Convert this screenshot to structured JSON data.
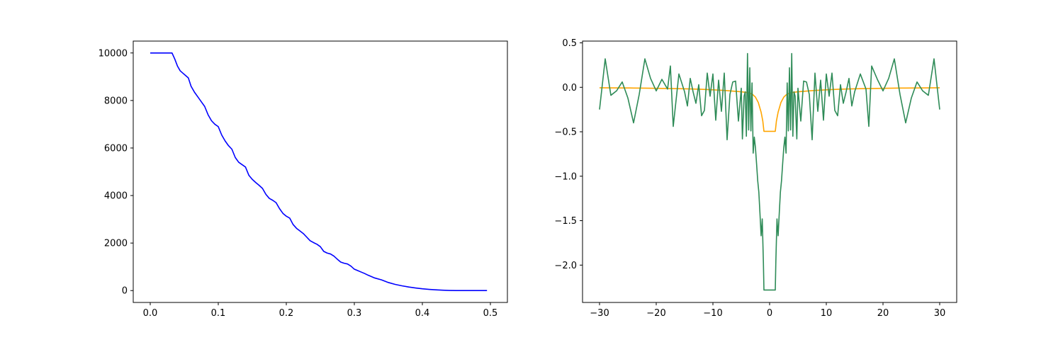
{
  "chart_data": [
    {
      "type": "line",
      "title": "",
      "xlabel": "",
      "ylabel": "",
      "xlim": [
        -0.025,
        0.525
      ],
      "ylim": [
        -500,
        10500
      ],
      "xticks": [
        0.0,
        0.1,
        0.2,
        0.3,
        0.4,
        0.5
      ],
      "xtick_labels": [
        "0.0",
        "0.1",
        "0.2",
        "0.3",
        "0.4",
        "0.5"
      ],
      "yticks": [
        0,
        2000,
        4000,
        6000,
        8000,
        10000
      ],
      "ytick_labels": [
        "0",
        "2000",
        "4000",
        "6000",
        "8000",
        "10000"
      ],
      "grid": false,
      "series": [
        {
          "color": "#0000ff",
          "x": [
            0.0,
            0.032,
            0.036,
            0.04,
            0.044,
            0.048,
            0.052,
            0.056,
            0.06,
            0.065,
            0.07,
            0.075,
            0.08,
            0.085,
            0.09,
            0.095,
            0.1,
            0.105,
            0.11,
            0.115,
            0.12,
            0.125,
            0.13,
            0.135,
            0.14,
            0.145,
            0.15,
            0.155,
            0.16,
            0.165,
            0.17,
            0.175,
            0.18,
            0.185,
            0.19,
            0.195,
            0.2,
            0.205,
            0.21,
            0.215,
            0.22,
            0.225,
            0.23,
            0.235,
            0.24,
            0.245,
            0.25,
            0.255,
            0.26,
            0.265,
            0.27,
            0.275,
            0.28,
            0.285,
            0.29,
            0.295,
            0.3,
            0.305,
            0.31,
            0.315,
            0.32,
            0.33,
            0.34,
            0.35,
            0.36,
            0.37,
            0.38,
            0.39,
            0.4,
            0.41,
            0.42,
            0.43,
            0.44,
            0.45,
            0.46,
            0.47,
            0.48,
            0.49,
            0.495
          ],
          "y": [
            10000,
            10000,
            9750,
            9450,
            9250,
            9150,
            9050,
            8950,
            8600,
            8350,
            8150,
            7950,
            7750,
            7400,
            7150,
            7000,
            6900,
            6550,
            6300,
            6100,
            5950,
            5600,
            5400,
            5300,
            5200,
            4850,
            4680,
            4550,
            4430,
            4300,
            4050,
            3880,
            3800,
            3700,
            3450,
            3250,
            3130,
            3050,
            2780,
            2620,
            2510,
            2400,
            2250,
            2100,
            2020,
            1950,
            1850,
            1650,
            1580,
            1540,
            1450,
            1320,
            1200,
            1150,
            1120,
            1030,
            900,
            840,
            780,
            720,
            650,
            530,
            450,
            340,
            260,
            200,
            150,
            110,
            75,
            50,
            30,
            15,
            5,
            2,
            1,
            0,
            0,
            0,
            0
          ]
        }
      ]
    },
    {
      "type": "line",
      "title": "",
      "xlabel": "",
      "ylabel": "",
      "xlim": [
        -33,
        33
      ],
      "ylim": [
        -2.42,
        0.52
      ],
      "xticks": [
        -30,
        -20,
        -10,
        0,
        10,
        20,
        30
      ],
      "xtick_labels": [
        "−30",
        "−20",
        "−10",
        "0",
        "10",
        "20",
        "30"
      ],
      "yticks": [
        0.5,
        0.0,
        -0.5,
        -1.0,
        -1.5,
        -2.0
      ],
      "ytick_labels": [
        "0.5",
        "0.0",
        "−0.5",
        "−1.0",
        "−1.5",
        "−2.0"
      ],
      "grid": false,
      "series": [
        {
          "color": "#ffa500",
          "x": [
            -30,
            -28,
            -26,
            -24,
            -22,
            -20,
            -18,
            -16,
            -14,
            -12,
            -10,
            -8,
            -6,
            -5,
            -4,
            -3.5,
            -3,
            -2.5,
            -2,
            -1.5,
            -1.2,
            -1,
            0,
            1,
            1.2,
            1.5,
            2,
            2.5,
            3,
            3.5,
            4,
            5,
            6,
            8,
            10,
            12,
            14,
            16,
            18,
            20,
            22,
            24,
            26,
            28,
            30
          ],
          "y": [
            -0.005,
            -0.006,
            -0.007,
            -0.008,
            -0.009,
            -0.011,
            -0.013,
            -0.015,
            -0.018,
            -0.022,
            -0.028,
            -0.035,
            -0.045,
            -0.05,
            -0.058,
            -0.065,
            -0.08,
            -0.11,
            -0.17,
            -0.28,
            -0.38,
            -0.495,
            -0.495,
            -0.495,
            -0.38,
            -0.28,
            -0.17,
            -0.11,
            -0.08,
            -0.065,
            -0.058,
            -0.05,
            -0.045,
            -0.035,
            -0.028,
            -0.022,
            -0.018,
            -0.015,
            -0.013,
            -0.011,
            -0.009,
            -0.008,
            -0.007,
            -0.006,
            -0.005
          ]
        },
        {
          "color": "#2e8b57",
          "x": [
            -30,
            -29,
            -28,
            -27,
            -26,
            -25,
            -24,
            -23,
            -22,
            -21,
            -20,
            -19,
            -18,
            -17.5,
            -17,
            -16,
            -15,
            -14.5,
            -14,
            -13.5,
            -13,
            -12.5,
            -12,
            -11.5,
            -11,
            -10.5,
            -10,
            -9.5,
            -9,
            -8.5,
            -8,
            -7.5,
            -7,
            -6.5,
            -6,
            -5.5,
            -5,
            -4.8,
            -4.5,
            -4.3,
            -4.1,
            -3.9,
            -3.7,
            -3.5,
            -3.3,
            -3.1,
            -2.9,
            -2.7,
            -2.5,
            -2.3,
            -2.1,
            -1.9,
            -1.7,
            -1.5,
            -1.3,
            -1.1,
            -1,
            0,
            1,
            1.1,
            1.3,
            1.5,
            1.7,
            1.9,
            2.1,
            2.3,
            2.5,
            2.7,
            2.9,
            3.1,
            3.3,
            3.5,
            3.7,
            3.9,
            4.1,
            4.3,
            4.5,
            4.8,
            5,
            5.5,
            6,
            6.5,
            7,
            7.5,
            8,
            8.5,
            9,
            9.5,
            10,
            10.5,
            11,
            11.5,
            12,
            12.5,
            13,
            13.5,
            14,
            14.5,
            15,
            16,
            17,
            17.5,
            18,
            19,
            20,
            21,
            22,
            23,
            24,
            25,
            26,
            27,
            28,
            29,
            30
          ],
          "y": [
            -0.25,
            0.32,
            -0.09,
            -0.04,
            0.06,
            -0.12,
            -0.4,
            -0.08,
            0.32,
            0.1,
            -0.04,
            0.09,
            -0.02,
            0.24,
            -0.44,
            0.15,
            -0.05,
            -0.21,
            0.1,
            -0.05,
            -0.18,
            0.03,
            -0.32,
            -0.26,
            0.16,
            -0.1,
            0.15,
            -0.37,
            0.08,
            -0.27,
            0.16,
            -0.59,
            -0.08,
            0.06,
            0.07,
            -0.38,
            -0.01,
            -0.58,
            -0.1,
            -0.05,
            -0.55,
            0.38,
            -0.48,
            0.22,
            -0.49,
            0.05,
            -0.74,
            -0.56,
            -0.68,
            -0.86,
            -1.05,
            -1.18,
            -1.42,
            -1.67,
            -1.48,
            -1.96,
            -2.28,
            -2.28,
            -2.28,
            -1.96,
            -1.48,
            -1.67,
            -1.42,
            -1.18,
            -1.05,
            -0.86,
            -0.68,
            -0.56,
            -0.74,
            0.05,
            -0.49,
            0.22,
            -0.48,
            0.38,
            -0.55,
            -0.05,
            -0.1,
            -0.58,
            -0.01,
            -0.38,
            0.07,
            0.06,
            -0.08,
            -0.59,
            0.16,
            -0.27,
            0.08,
            -0.37,
            0.15,
            -0.1,
            0.16,
            -0.26,
            -0.32,
            0.03,
            -0.18,
            -0.05,
            0.1,
            -0.21,
            -0.05,
            0.15,
            -0.02,
            -0.44,
            0.24,
            0.09,
            -0.04,
            0.1,
            0.32,
            -0.08,
            -0.4,
            -0.12,
            0.06,
            -0.04,
            -0.09,
            0.32,
            -0.25
          ]
        }
      ]
    }
  ]
}
